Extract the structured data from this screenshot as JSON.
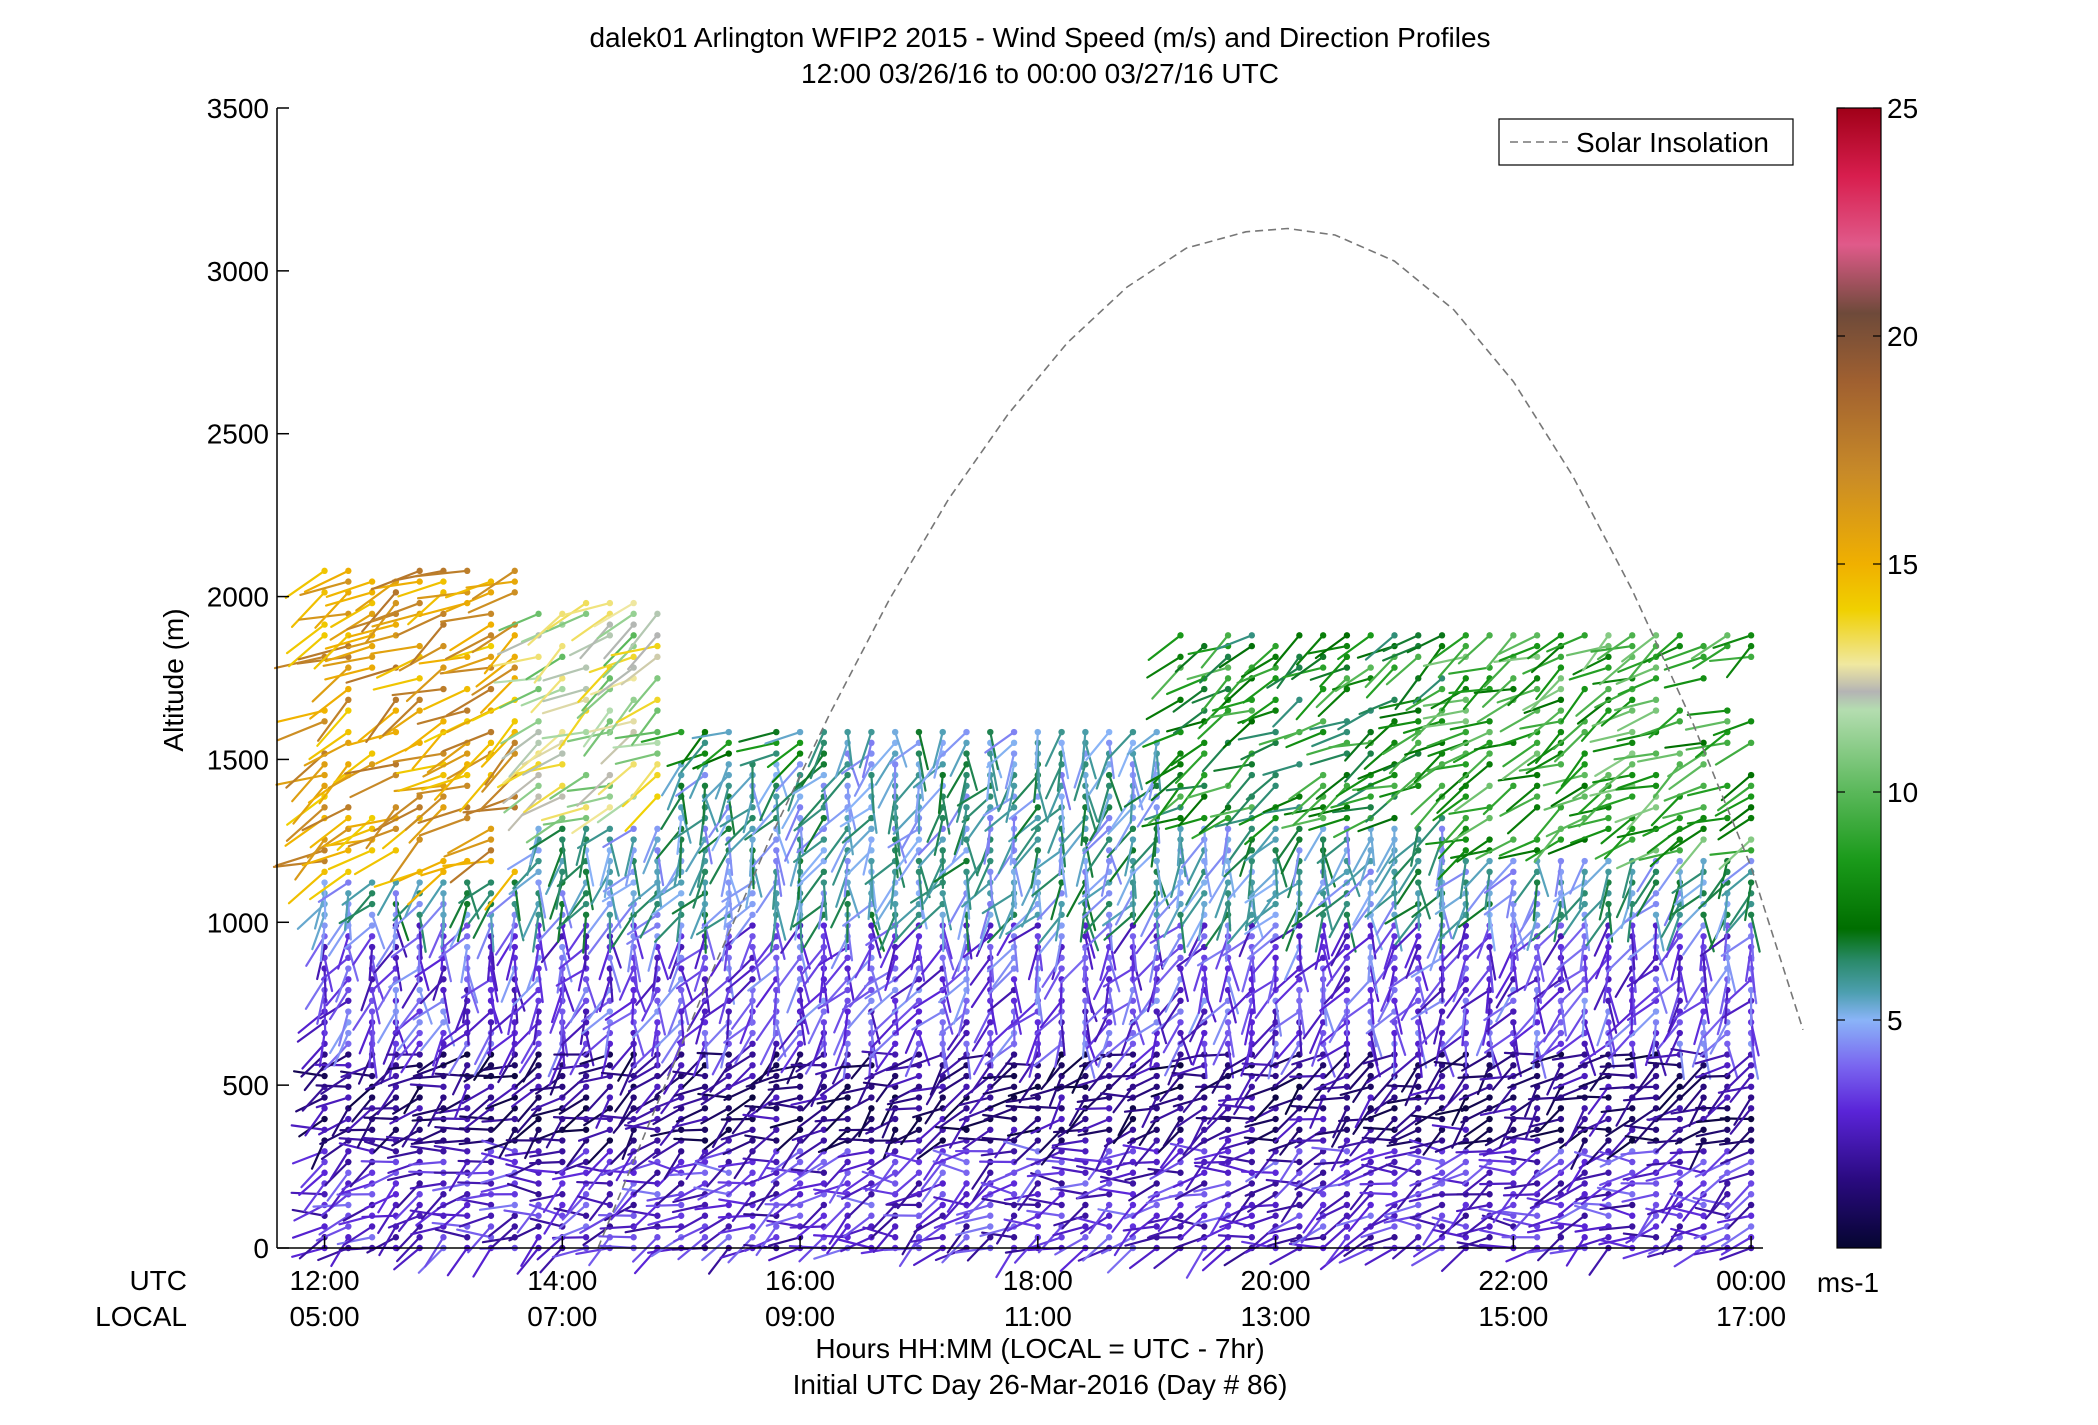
{
  "chart_data": {
    "type": "scatter",
    "title": "dalek01 Arlington WFIP2 2015 - Wind Speed (m/s) and Direction Profiles",
    "subtitle": "12:00 03/26/16 to 00:00 03/27/16  UTC",
    "ylabel": "Altitude (m)",
    "ylim": [
      0,
      3500
    ],
    "xlim_hours": [
      11.6,
      24.1
    ],
    "y_ticks": [
      "0",
      "500",
      "1000",
      "1500",
      "2000",
      "2500",
      "3000",
      "3500"
    ],
    "x_tick_hours": [
      12,
      14,
      16,
      18,
      20,
      22,
      24
    ],
    "x_row_labels": [
      "UTC",
      "LOCAL"
    ],
    "x_ticks_utc": [
      "12:00",
      "14:00",
      "16:00",
      "18:00",
      "20:00",
      "22:00",
      "00:00"
    ],
    "x_ticks_local": [
      "05:00",
      "07:00",
      "09:00",
      "11:00",
      "13:00",
      "15:00",
      "17:00"
    ],
    "xlabel": "Hours HH:MM  (LOCAL = UTC - 7hr)",
    "xlabel2": "Initial UTC Day 26-Mar-2016 (Day # 86)",
    "legend": {
      "label": "Solar Insolation",
      "placement": "top-right",
      "line_color": "#777777",
      "line_style": "dashed"
    },
    "solar_insolation": {
      "hours": [
        14.3,
        14.75,
        15.25,
        15.75,
        16.25,
        16.75,
        17.25,
        17.75,
        18.25,
        18.75,
        19.25,
        19.75,
        20.1,
        20.5,
        21.0,
        21.5,
        22.0,
        22.5,
        23.0,
        23.5,
        24.0,
        24.5
      ],
      "altitude_equiv_m": [
        0,
        400,
        840,
        1260,
        1640,
        1990,
        2300,
        2560,
        2780,
        2950,
        3070,
        3120,
        3130,
        3110,
        3030,
        2880,
        2660,
        2370,
        2020,
        1620,
        1170,
        670
      ]
    },
    "colorbar": {
      "min": 0,
      "max": 25,
      "ticks": [
        "5",
        "10",
        "15",
        "20",
        "25"
      ],
      "unit": "ms-1",
      "stops": [
        {
          "v": 0,
          "c": "#050530"
        },
        {
          "v": 1.5,
          "c": "#2a0a80"
        },
        {
          "v": 3,
          "c": "#5a24d8"
        },
        {
          "v": 4,
          "c": "#7a66f0"
        },
        {
          "v": 5,
          "c": "#8ab4f8"
        },
        {
          "v": 5.6,
          "c": "#4d9fb0"
        },
        {
          "v": 6.3,
          "c": "#2a8a6a"
        },
        {
          "v": 7,
          "c": "#006e00"
        },
        {
          "v": 8.5,
          "c": "#1a9a1a"
        },
        {
          "v": 10,
          "c": "#5ab85a"
        },
        {
          "v": 11.8,
          "c": "#b4ddb0"
        },
        {
          "v": 12.2,
          "c": "#b4b4b4"
        },
        {
          "v": 12.8,
          "c": "#f0e8a0"
        },
        {
          "v": 14,
          "c": "#f0d000"
        },
        {
          "v": 15,
          "c": "#f0b000"
        },
        {
          "v": 17,
          "c": "#c88a28"
        },
        {
          "v": 19,
          "c": "#a06030"
        },
        {
          "v": 20.5,
          "c": "#6e4a3a"
        },
        {
          "v": 22,
          "c": "#e05a8a"
        },
        {
          "v": 23.5,
          "c": "#d81e4e"
        },
        {
          "v": 25,
          "c": "#a00018"
        }
      ]
    },
    "wind_profiles": {
      "levels_below": [
        {
          "max_alt": 300,
          "speed": 3.0,
          "dir_deg": 250
        },
        {
          "max_alt": 600,
          "speed": 1.5,
          "dir_deg": 240
        },
        {
          "max_alt": 1000,
          "speed": 3.5,
          "dir_deg": 200
        },
        {
          "max_alt": 1600,
          "speed": 5.5,
          "dir_deg": 200
        }
      ],
      "segments": [
        {
          "h_start": 12.0,
          "h_end": 13.6,
          "top_m": 1150,
          "upper_speed": 16,
          "upper_top_m": 2100
        },
        {
          "h_start": 13.6,
          "h_end": 14.8,
          "top_m": 1300,
          "upper_speed": 12,
          "upper_top_m": 2000
        },
        {
          "h_start": 14.8,
          "h_end": 16.0,
          "top_m": 1500,
          "upper_speed": 7,
          "upper_top_m": 1600
        },
        {
          "h_start": 16.0,
          "h_end": 19.0,
          "top_m": 1600,
          "upper_speed": 6,
          "upper_top_m": 1600
        },
        {
          "h_start": 19.0,
          "h_end": 21.5,
          "top_m": 1300,
          "upper_speed": 8,
          "upper_top_m": 1900
        },
        {
          "h_start": 21.5,
          "h_end": 24.0,
          "top_m": 1200,
          "upper_speed": 9,
          "upper_top_m": 1900
        }
      ]
    }
  }
}
